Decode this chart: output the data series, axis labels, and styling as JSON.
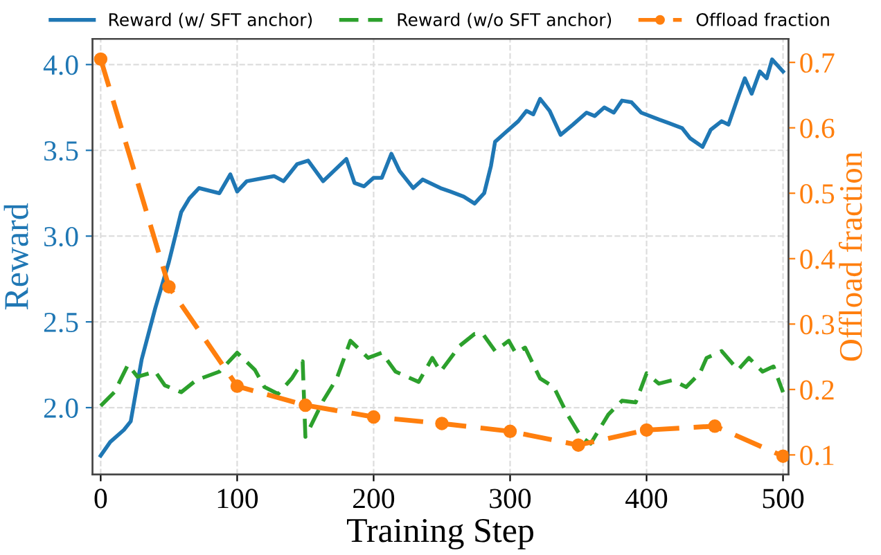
{
  "chart_data": {
    "type": "line",
    "xlabel": "Training Step",
    "ylabel": "Reward",
    "y2label": "Offload fraction",
    "xlim": [
      -6,
      504
    ],
    "xticks": [
      0,
      100,
      200,
      300,
      400,
      500
    ],
    "ylim": [
      1.61,
      4.15
    ],
    "yticks": [
      {
        "value": 2.0,
        "label": "2.0"
      },
      {
        "value": 2.5,
        "label": "2.5"
      },
      {
        "value": 3.0,
        "label": "3.0"
      },
      {
        "value": 3.5,
        "label": "3.5"
      },
      {
        "value": 4.0,
        "label": "4.0"
      }
    ],
    "y2lim": [
      0.07,
      0.736
    ],
    "y2ticks": [
      0.1,
      0.2,
      0.3,
      0.4,
      0.5,
      0.6,
      0.7
    ],
    "grid": true,
    "legend": "top",
    "series": [
      {
        "name": "Reward (w/ SFT anchor)",
        "color": "#1f77b4",
        "line_style": "solid",
        "marker": "none",
        "x": [
          0,
          7,
          17,
          22,
          30,
          40,
          50,
          59,
          65,
          72,
          87,
          95,
          100,
          107,
          127,
          134,
          144,
          152,
          163,
          180,
          186,
          193,
          200,
          206,
          213,
          219,
          229,
          236,
          249,
          256,
          266,
          274,
          281,
          286,
          289,
          296,
          306,
          312,
          317,
          322,
          329,
          337,
          346,
          356,
          362,
          369,
          376,
          382,
          389,
          396,
          409,
          416,
          426,
          432,
          441,
          447,
          455,
          460,
          467,
          472,
          477,
          483,
          488,
          492,
          500
        ],
        "values": [
          1.72,
          1.8,
          1.87,
          1.92,
          2.28,
          2.58,
          2.85,
          3.14,
          3.22,
          3.28,
          3.25,
          3.36,
          3.26,
          3.32,
          3.35,
          3.32,
          3.42,
          3.44,
          3.32,
          3.45,
          3.31,
          3.29,
          3.34,
          3.34,
          3.48,
          3.38,
          3.28,
          3.33,
          3.28,
          3.26,
          3.23,
          3.19,
          3.25,
          3.41,
          3.55,
          3.6,
          3.67,
          3.73,
          3.71,
          3.8,
          3.73,
          3.59,
          3.65,
          3.72,
          3.7,
          3.75,
          3.72,
          3.79,
          3.78,
          3.72,
          3.68,
          3.66,
          3.63,
          3.57,
          3.52,
          3.62,
          3.67,
          3.65,
          3.81,
          3.92,
          3.83,
          3.96,
          3.92,
          4.03,
          3.96
        ]
      },
      {
        "name": "Reward (w/o SFT anchor)",
        "color": "#2ca02c",
        "line_style": "dashed",
        "marker": "none",
        "x": [
          0,
          10,
          20,
          27,
          40,
          47,
          59,
          70,
          87,
          100,
          113,
          120,
          130,
          140,
          148,
          150,
          163,
          173,
          183,
          196,
          206,
          216,
          233,
          243,
          249,
          263,
          274,
          280,
          289,
          299,
          304,
          311,
          322,
          332,
          342,
          352,
          359,
          372,
          382,
          392,
          400,
          409,
          419,
          429,
          439,
          444,
          455,
          467,
          475,
          485,
          493,
          500
        ],
        "values": [
          2.01,
          2.09,
          2.25,
          2.18,
          2.21,
          2.13,
          2.09,
          2.16,
          2.21,
          2.32,
          2.22,
          2.12,
          2.08,
          2.17,
          2.27,
          1.83,
          2.04,
          2.17,
          2.39,
          2.29,
          2.32,
          2.21,
          2.15,
          2.29,
          2.21,
          2.36,
          2.43,
          2.43,
          2.33,
          2.39,
          2.32,
          2.35,
          2.17,
          2.12,
          1.96,
          1.83,
          1.79,
          1.96,
          2.04,
          2.03,
          2.2,
          2.14,
          2.16,
          2.12,
          2.2,
          2.29,
          2.33,
          2.22,
          2.29,
          2.21,
          2.24,
          2.09
        ]
      },
      {
        "name": "Offload fraction",
        "color": "#ff7f0e",
        "axis": "y2",
        "line_style": "dashed",
        "marker": "circle",
        "x": [
          0,
          50,
          100,
          150,
          200,
          250,
          300,
          350,
          400,
          450,
          500
        ],
        "values": [
          0.705,
          0.357,
          0.205,
          0.176,
          0.158,
          0.148,
          0.136,
          0.115,
          0.138,
          0.144,
          0.098
        ]
      }
    ]
  }
}
